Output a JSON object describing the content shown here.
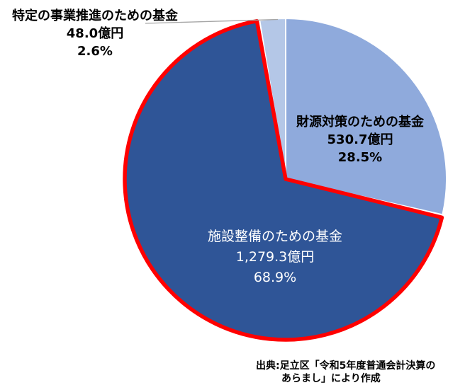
{
  "chart_data": {
    "type": "pie",
    "title": "",
    "unit": "億円",
    "total_value": 1858.0,
    "start_angle_deg": 0,
    "direction": "clockwise",
    "legend": "none",
    "slice_border_color": "#FFFFFF",
    "leader_line_color": "#A6A6A6",
    "slices": [
      {
        "name": "財源対策のための基金",
        "value": 530.7,
        "value_label": "530.7億円",
        "percent": 28.5,
        "percent_label": "28.5%",
        "color": "#8FAADC",
        "label_text_color": "#000000"
      },
      {
        "name": "施設整備のための基金",
        "value": 1279.3,
        "value_label": "1,279.3億円",
        "percent": 68.9,
        "percent_label": "68.9%",
        "color": "#2F5597",
        "label_text_color": "#FFFFFF",
        "outline_color": "#FF0000"
      },
      {
        "name": "特定の事業推進のための基金",
        "value": 48.0,
        "value_label": "48.0億円",
        "percent": 2.6,
        "percent_label": "2.6%",
        "color": "#B4C7E7",
        "label_text_color": "#000000"
      }
    ]
  },
  "source": {
    "line1": "出典:足立区「令和5年度普通会計決算の",
    "line2": "あらまし」により作成"
  }
}
